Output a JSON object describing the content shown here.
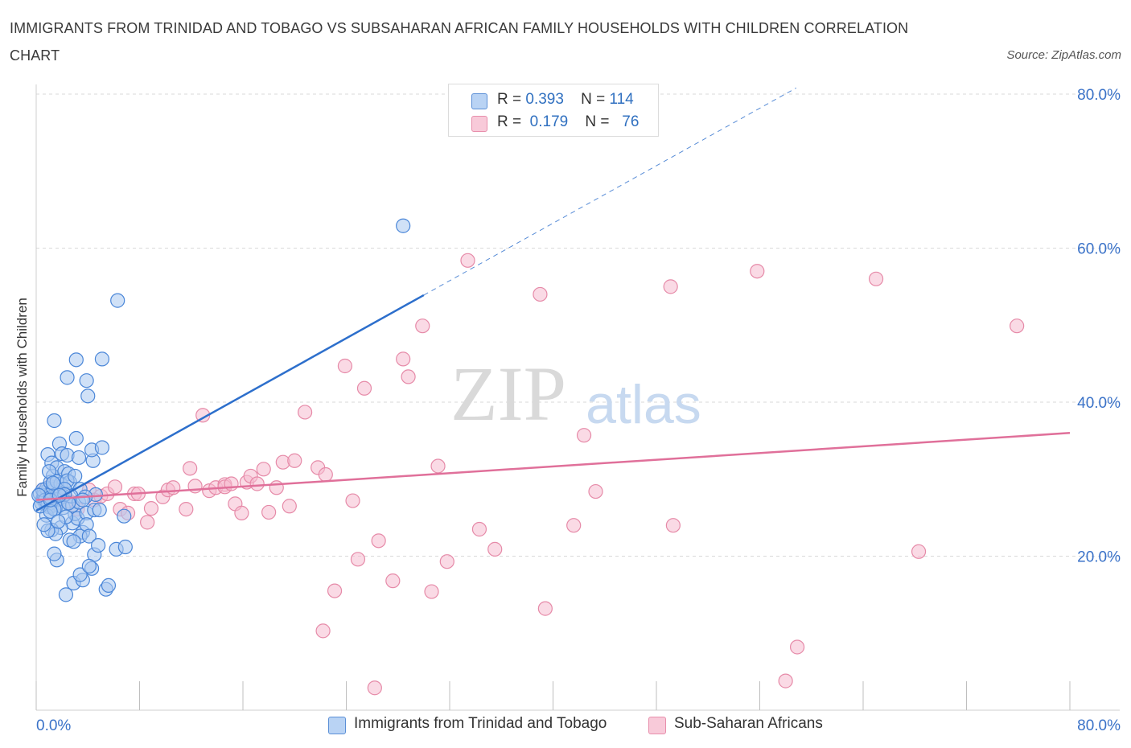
{
  "title": "IMMIGRANTS FROM TRINIDAD AND TOBAGO VS SUBSAHARAN AFRICAN FAMILY HOUSEHOLDS WITH CHILDREN CORRELATION CHART",
  "source": "Source: ZipAtlas.com",
  "watermark": {
    "zip": "ZIP",
    "atlas": "atlas"
  },
  "colors": {
    "blue_fill": "#a9c8f0",
    "blue_stroke": "#4a86d8",
    "blue_line": "#2d6fcc",
    "pink_fill": "#f5bccf",
    "pink_stroke": "#e68aa8",
    "pink_line": "#e0709a",
    "axis_text": "#3a72c8",
    "grid": "#d9d9d9"
  },
  "legend": {
    "rows": [
      {
        "r_label": "R =",
        "r_value": "0.393",
        "n_label": "N =",
        "n_value": "114"
      },
      {
        "r_label": "R =",
        "r_value": "0.179",
        "n_label": "N =",
        "n_value": "76"
      }
    ]
  },
  "chart_data": {
    "type": "scatter",
    "title": "IMMIGRANTS FROM TRINIDAD AND TOBAGO VS SUBSAHARAN AFRICAN FAMILY HOUSEHOLDS WITH CHILDREN CORRELATION CHART",
    "xlabel": "",
    "ylabel": "Family Households with Children",
    "xlim": [
      0,
      80
    ],
    "ylim": [
      0,
      80
    ],
    "x_tick_labels": [
      "0.0%",
      "80.0%"
    ],
    "y_tick_labels": [
      "20.0%",
      "40.0%",
      "60.0%",
      "80.0%"
    ],
    "y_ticks": [
      20,
      40,
      60,
      80
    ],
    "grid": "horizontal dashed",
    "legend_position": "top-center",
    "series": [
      {
        "name": "Immigrants from Trinidad and Tobago",
        "color": "blue",
        "R": 0.393,
        "N": 114,
        "trendline": {
          "x": [
            0,
            30
          ],
          "y": [
            25.9,
            53.9
          ],
          "dashed_extension_to": [
            80,
            100.6
          ]
        },
        "points": [
          [
            0.3,
            28.1
          ],
          [
            0.5,
            27.4
          ],
          [
            0.6,
            28.3
          ],
          [
            0.7,
            26.9
          ],
          [
            0.8,
            27.6
          ],
          [
            0.9,
            28.5
          ],
          [
            1.0,
            27.0
          ],
          [
            1.1,
            28.0
          ],
          [
            1.2,
            26.5
          ],
          [
            1.3,
            27.8
          ],
          [
            1.4,
            28.7
          ],
          [
            1.5,
            27.2
          ],
          [
            1.6,
            26.8
          ],
          [
            1.7,
            28.2
          ],
          [
            1.8,
            27.5
          ],
          [
            0.4,
            26.9
          ],
          [
            0.6,
            27.9
          ],
          [
            0.8,
            28.8
          ],
          [
            1.0,
            26.4
          ],
          [
            1.2,
            28.4
          ],
          [
            1.4,
            27.1
          ],
          [
            1.6,
            27.9
          ],
          [
            1.8,
            26.6
          ],
          [
            2.0,
            27.7
          ],
          [
            0.5,
            28.6
          ],
          [
            0.7,
            27.3
          ],
          [
            0.9,
            26.7
          ],
          [
            1.1,
            27.6
          ],
          [
            1.3,
            28.9
          ],
          [
            1.5,
            26.2
          ],
          [
            1.7,
            27.4
          ],
          [
            1.9,
            28.1
          ],
          [
            0.9,
            33.2
          ],
          [
            1.2,
            32.1
          ],
          [
            1.3,
            30.4
          ],
          [
            1.1,
            29.6
          ],
          [
            1.6,
            31.5
          ],
          [
            1.8,
            34.6
          ],
          [
            2.0,
            33.3
          ],
          [
            2.2,
            31.0
          ],
          [
            2.5,
            30.7
          ],
          [
            2.4,
            33.1
          ],
          [
            1.9,
            29.4
          ],
          [
            2.6,
            29.6
          ],
          [
            1.4,
            37.6
          ],
          [
            1.0,
            31.0
          ],
          [
            1.6,
            29.7
          ],
          [
            2.4,
            29.8
          ],
          [
            3.0,
            30.4
          ],
          [
            3.1,
            35.3
          ],
          [
            3.3,
            32.8
          ],
          [
            4.4,
            32.4
          ],
          [
            4.3,
            33.8
          ],
          [
            5.1,
            34.1
          ],
          [
            4.6,
            28.0
          ],
          [
            3.4,
            28.7
          ],
          [
            2.1,
            26.3
          ],
          [
            2.8,
            24.3
          ],
          [
            3.0,
            25.5
          ],
          [
            3.2,
            24.9
          ],
          [
            3.6,
            23.1
          ],
          [
            3.4,
            22.6
          ],
          [
            3.9,
            25.6
          ],
          [
            3.9,
            24.1
          ],
          [
            4.1,
            22.6
          ],
          [
            4.5,
            26.0
          ],
          [
            4.9,
            26.0
          ],
          [
            2.6,
            22.1
          ],
          [
            1.9,
            23.7
          ],
          [
            1.2,
            23.4
          ],
          [
            1.5,
            22.9
          ],
          [
            0.9,
            23.3
          ],
          [
            0.8,
            25.3
          ],
          [
            1.4,
            26.1
          ],
          [
            2.9,
            21.9
          ],
          [
            2.8,
            26.6
          ],
          [
            1.6,
            19.5
          ],
          [
            1.4,
            20.3
          ],
          [
            2.9,
            16.5
          ],
          [
            3.6,
            16.9
          ],
          [
            2.3,
            15.0
          ],
          [
            4.3,
            18.4
          ],
          [
            4.5,
            20.2
          ],
          [
            4.8,
            21.4
          ],
          [
            5.4,
            15.7
          ],
          [
            5.6,
            16.2
          ],
          [
            3.4,
            17.6
          ],
          [
            4.1,
            18.7
          ],
          [
            6.2,
            20.9
          ],
          [
            6.9,
            21.2
          ],
          [
            6.8,
            25.2
          ],
          [
            6.3,
            53.2
          ],
          [
            3.1,
            45.5
          ],
          [
            5.1,
            45.6
          ],
          [
            2.4,
            43.2
          ],
          [
            3.9,
            42.8
          ],
          [
            4.0,
            40.8
          ],
          [
            28.4,
            62.9
          ],
          [
            2.2,
            28.7
          ],
          [
            2.7,
            27.8
          ],
          [
            3.3,
            27.0
          ],
          [
            3.8,
            27.7
          ],
          [
            0.3,
            26.5
          ],
          [
            0.2,
            27.9
          ],
          [
            1.1,
            25.8
          ],
          [
            2.3,
            25.1
          ],
          [
            1.7,
            24.5
          ],
          [
            0.6,
            24.1
          ],
          [
            2.2,
            28.0
          ],
          [
            2.5,
            26.9
          ],
          [
            3.6,
            27.3
          ],
          [
            1.3,
            29.5
          ],
          [
            1.1,
            27.3
          ],
          [
            1.8,
            27.9
          ]
        ]
      },
      {
        "name": "Sub-Saharan Africans",
        "color": "pink",
        "R": 0.179,
        "N": 76,
        "trendline": {
          "x": [
            0,
            80
          ],
          "y": [
            27.3,
            36.0
          ]
        },
        "points": [
          [
            0.5,
            28.6
          ],
          [
            0.8,
            27.2
          ],
          [
            1.1,
            29.1
          ],
          [
            1.4,
            26.7
          ],
          [
            1.7,
            28.2
          ],
          [
            2.0,
            27.6
          ],
          [
            2.6,
            27.1
          ],
          [
            3.2,
            26.1
          ],
          [
            4.1,
            28.6
          ],
          [
            4.5,
            27.3
          ],
          [
            5.0,
            27.8
          ],
          [
            5.5,
            28.1
          ],
          [
            6.5,
            26.1
          ],
          [
            6.1,
            29.0
          ],
          [
            7.1,
            25.6
          ],
          [
            7.6,
            28.1
          ],
          [
            7.9,
            28.1
          ],
          [
            8.6,
            24.4
          ],
          [
            8.9,
            26.2
          ],
          [
            9.8,
            27.7
          ],
          [
            10.2,
            28.6
          ],
          [
            10.6,
            28.9
          ],
          [
            11.6,
            26.1
          ],
          [
            11.9,
            31.4
          ],
          [
            12.3,
            29.1
          ],
          [
            12.9,
            38.3
          ],
          [
            13.4,
            28.5
          ],
          [
            13.9,
            28.9
          ],
          [
            14.6,
            29.3
          ],
          [
            14.6,
            29.0
          ],
          [
            15.1,
            29.4
          ],
          [
            15.4,
            26.8
          ],
          [
            15.9,
            25.6
          ],
          [
            16.3,
            29.6
          ],
          [
            16.6,
            30.4
          ],
          [
            17.1,
            29.4
          ],
          [
            17.6,
            31.3
          ],
          [
            18.0,
            25.7
          ],
          [
            18.6,
            28.9
          ],
          [
            19.1,
            32.2
          ],
          [
            19.6,
            26.5
          ],
          [
            20.0,
            32.4
          ],
          [
            20.8,
            38.7
          ],
          [
            21.8,
            31.5
          ],
          [
            22.4,
            30.6
          ],
          [
            22.2,
            10.3
          ],
          [
            23.1,
            15.5
          ],
          [
            23.9,
            44.7
          ],
          [
            24.5,
            27.2
          ],
          [
            24.9,
            19.6
          ],
          [
            25.4,
            41.8
          ],
          [
            26.2,
            2.9
          ],
          [
            26.5,
            22.0
          ],
          [
            27.6,
            16.8
          ],
          [
            28.4,
            45.6
          ],
          [
            28.8,
            43.3
          ],
          [
            29.9,
            49.9
          ],
          [
            30.6,
            15.4
          ],
          [
            31.1,
            31.7
          ],
          [
            31.8,
            19.3
          ],
          [
            33.4,
            58.4
          ],
          [
            34.3,
            23.5
          ],
          [
            35.5,
            20.9
          ],
          [
            39.0,
            54.0
          ],
          [
            39.4,
            13.2
          ],
          [
            41.6,
            24.0
          ],
          [
            42.4,
            35.7
          ],
          [
            43.3,
            28.4
          ],
          [
            49.1,
            55.0
          ],
          [
            49.3,
            24.0
          ],
          [
            55.8,
            57.0
          ],
          [
            58.0,
            3.8
          ],
          [
            58.9,
            8.2
          ],
          [
            65.0,
            56.0
          ],
          [
            68.3,
            20.6
          ],
          [
            75.9,
            49.9
          ]
        ]
      }
    ]
  },
  "bottom_legend": [
    {
      "label": "Immigrants from Trinidad and Tobago"
    },
    {
      "label": "Sub-Saharan Africans"
    }
  ]
}
